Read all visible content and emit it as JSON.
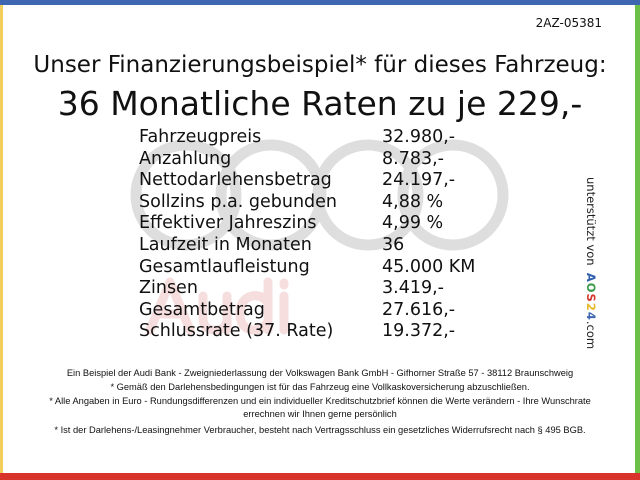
{
  "code": "2AZ-05381",
  "headline": "Unser Finanzierungsbeispiel* für dieses Fahrzeug:",
  "subheadline": "36 Monatliche Raten zu je 229,-",
  "watermark": "Audi",
  "rows": [
    {
      "label": "Fahrzeugpreis",
      "value": "32.980,-"
    },
    {
      "label": "Anzahlung",
      "value": "8.783,-"
    },
    {
      "label": "Nettodarlehensbetrag",
      "value": "24.197,-"
    },
    {
      "label": "Sollzins p.a. gebunden",
      "value": "4,88 %"
    },
    {
      "label": "Effektiver Jahreszins",
      "value": "4,99 %"
    },
    {
      "label": "Laufzeit in Monaten",
      "value": "36"
    },
    {
      "label": "Gesamtlaufleistung",
      "value": "45.000 KM"
    },
    {
      "label": "Zinsen",
      "value": "3.419,-"
    },
    {
      "label": "Gesamtbetrag",
      "value": "27.616,-"
    },
    {
      "label": "Schlussrate (37. Rate)",
      "value": "19.372,-"
    }
  ],
  "sponsor": {
    "prefix": "unterstützt von",
    "logo": "AOS24",
    "suffix": ".com"
  },
  "footnotes": [
    "Ein Beispiel der Audi Bank -  Zweigniederlassung der Volkswagen Bank GmbH - Gifhorner Straße 57 - 38112 Braunschweig",
    "* Gemäß den Darlehensbedingungen ist für das Fahrzeug eine Vollkaskoversicherung abzuschließen.",
    "* Alle Angaben in Euro - Rundungsdifferenzen und ein individueller Kreditschutzbrief können die Werte verändern - Ihre Wunschrate errechnen wir Ihnen gerne persönlich",
    "* Ist der Darlehens-/Leasingnehmer Verbraucher, besteht nach Vertragsschluss ein gesetzliches Widerrufsrecht nach § 495 BGB."
  ],
  "colors": {
    "top": "#3f67b1",
    "left": "#f2cf5c",
    "right": "#6cbf47",
    "bottom": "#d9342b"
  }
}
